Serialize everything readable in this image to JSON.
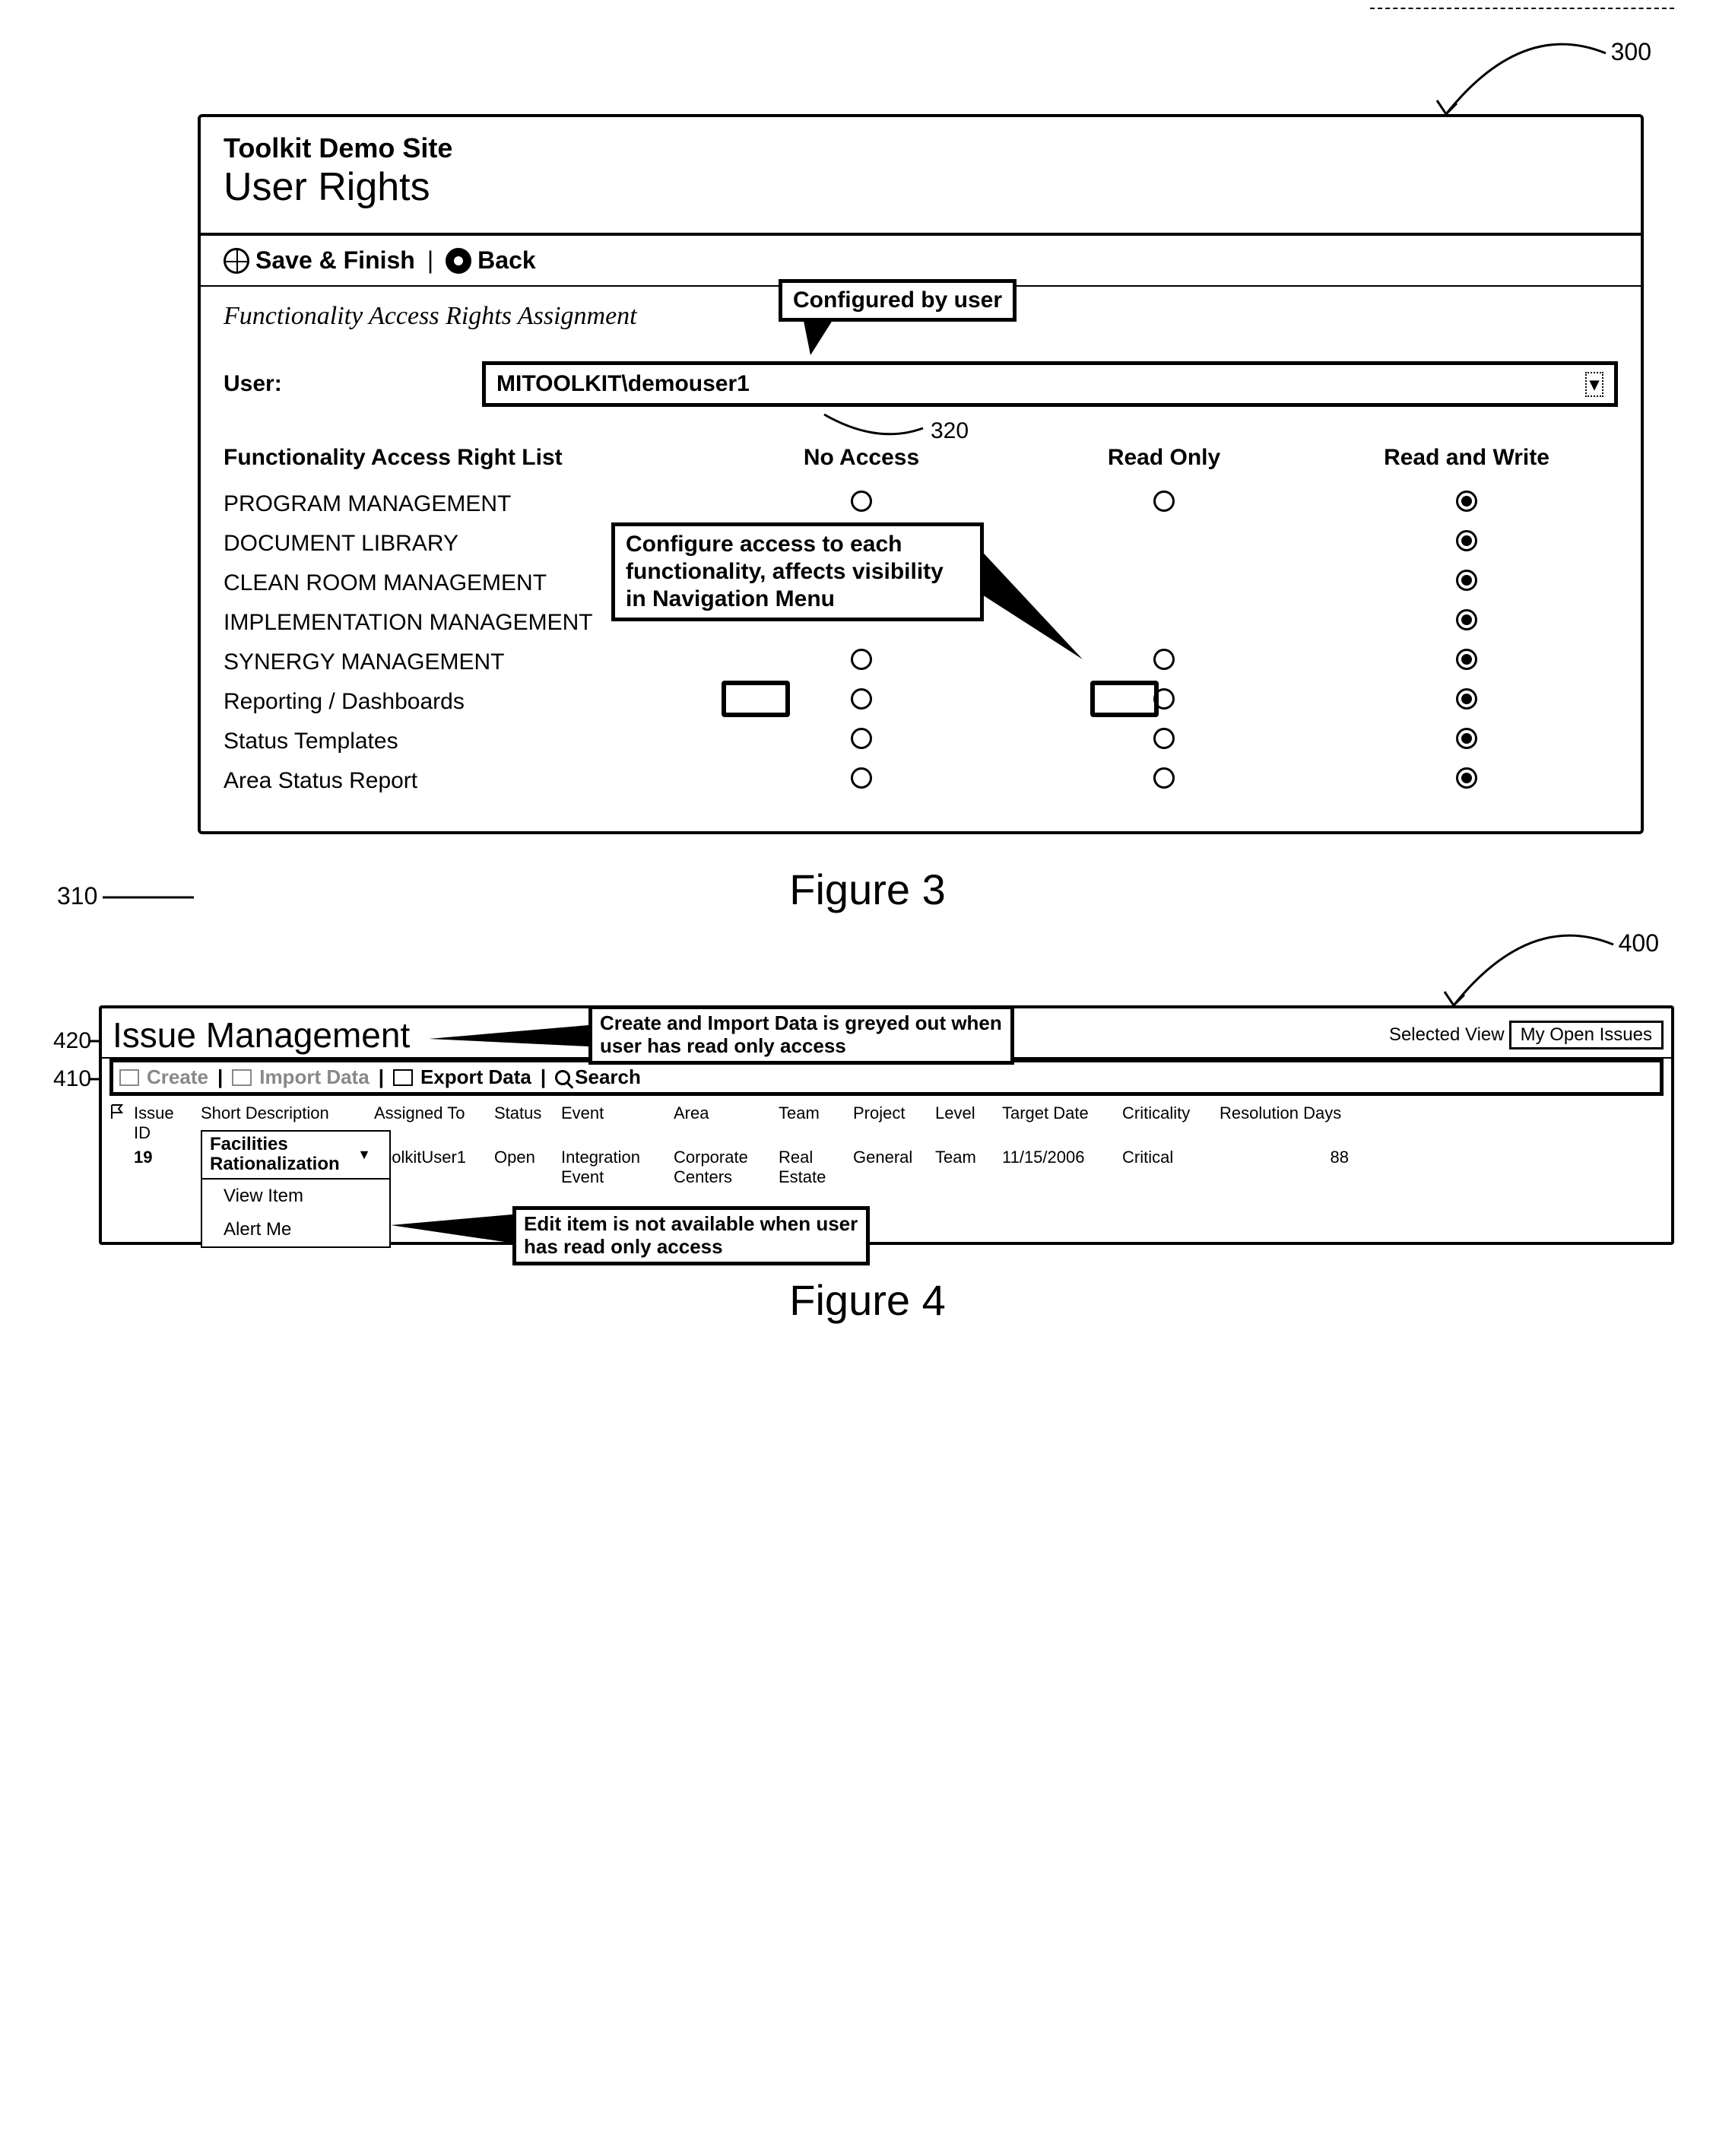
{
  "fig3": {
    "ref_300": "300",
    "ref_310": "310",
    "ref_320": "320",
    "site_title": "Toolkit Demo Site",
    "page_title": "User Rights",
    "toolbar": {
      "save": "Save & Finish",
      "back": "Back"
    },
    "section_title": "Functionality Access Rights Assignment",
    "callout_user": "Configured by user",
    "user_label": "User:",
    "user_value": "MITOOLKIT\\demouser1",
    "callout_access": "Configure access to each functionality, affects visibility in Navigation Menu",
    "headers": {
      "list": "Functionality Access Right List",
      "na": "No Access",
      "ro": "Read Only",
      "rw": "Read and Write"
    },
    "rows": [
      {
        "label": "PROGRAM MANAGEMENT",
        "na": false,
        "ro": false,
        "rw": true,
        "upper": true
      },
      {
        "label": "DOCUMENT LIBRARY",
        "na": null,
        "ro": null,
        "rw": true,
        "upper": true
      },
      {
        "label": "CLEAN ROOM MANAGEMENT",
        "na": null,
        "ro": null,
        "rw": true,
        "upper": true
      },
      {
        "label": "IMPLEMENTATION MANAGEMENT",
        "na": null,
        "ro": null,
        "rw": true,
        "upper": true
      },
      {
        "label": "SYNERGY MANAGEMENT",
        "na": false,
        "ro": false,
        "rw": true,
        "upper": true
      },
      {
        "label": "Reporting / Dashboards",
        "na": false,
        "ro": false,
        "rw": true,
        "upper": false,
        "highlight": true
      },
      {
        "label": "Status Templates",
        "na": false,
        "ro": false,
        "rw": true,
        "upper": false
      },
      {
        "label": "Area Status Report",
        "na": false,
        "ro": false,
        "rw": true,
        "upper": false
      }
    ],
    "caption": "Figure 3"
  },
  "fig4": {
    "ref_400": "400",
    "ref_410": "410",
    "ref_420": "420",
    "title": "Issue Management",
    "callout_create": "Create and Import Data is greyed out when user has read only access",
    "selview_label": "Selected View",
    "selview_value": "My Open Issues",
    "toolbar": {
      "create": "Create",
      "import": "Import Data",
      "export": "Export Data",
      "search": "Search"
    },
    "columns": [
      "Issue ID",
      "Short Description",
      "Assigned To",
      "Status",
      "Event",
      "Area",
      "Team",
      "Project",
      "Level",
      "Target Date",
      "Criticality",
      "Resolution Days"
    ],
    "row": {
      "id": "19",
      "desc": "Facilities Rationalization",
      "assigned": "ToolkitUser1",
      "status": "Open",
      "event": "Integration Event",
      "area": "Corporate Centers",
      "team": "Real Estate",
      "project": "General",
      "level": "Team",
      "target": "11/15/2006",
      "crit": "Critical",
      "days": "88"
    },
    "ctx": {
      "header": "Facilities Rationalization",
      "view": "View Item",
      "alert": "Alert Me"
    },
    "callout_edit": "Edit item is not available when user has read only access",
    "caption": "Figure 4"
  }
}
